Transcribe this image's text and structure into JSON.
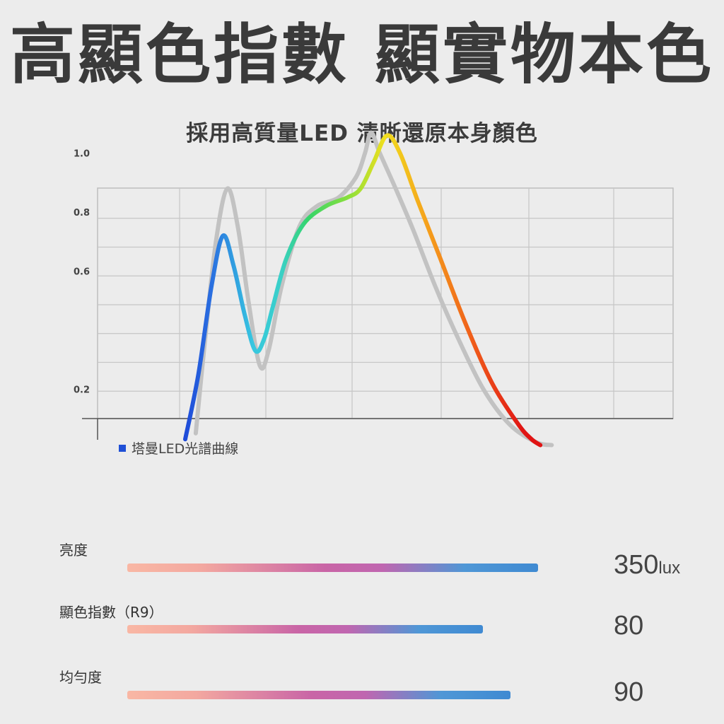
{
  "header": {
    "title": "高顯色指數 顯實物本色",
    "subtitle": "採用高質量LED 清晰還原本身顏色"
  },
  "chart_data": {
    "type": "line",
    "y_ticks": [
      "1.0",
      "0.8",
      "0.6",
      "0.2"
    ],
    "y_tick_values": [
      1.0,
      0.8,
      0.6,
      0.2
    ],
    "grid": true,
    "legend": {
      "label": "塔曼LED光譜曲線",
      "color": "#1f4fd6",
      "placement": "bottom-left"
    },
    "series": [
      {
        "name": "塔曼LED光譜曲線",
        "style": "rainbow",
        "points": [
          [
            1.0,
            0.03
          ],
          [
            1.15,
            0.25
          ],
          [
            1.3,
            0.55
          ],
          [
            1.43,
            0.72
          ],
          [
            1.55,
            0.62
          ],
          [
            1.68,
            0.45
          ],
          [
            1.8,
            0.33
          ],
          [
            1.9,
            0.37
          ],
          [
            2.0,
            0.48
          ],
          [
            2.15,
            0.64
          ],
          [
            2.35,
            0.76
          ],
          [
            2.6,
            0.82
          ],
          [
            2.85,
            0.85
          ],
          [
            3.0,
            0.88
          ],
          [
            3.15,
            0.97
          ],
          [
            3.3,
            1.06
          ],
          [
            3.45,
            1.0
          ],
          [
            3.65,
            0.84
          ],
          [
            3.9,
            0.65
          ],
          [
            4.2,
            0.42
          ],
          [
            4.5,
            0.22
          ],
          [
            4.8,
            0.08
          ],
          [
            4.95,
            0.03
          ],
          [
            5.05,
            0.01
          ]
        ]
      },
      {
        "style": "gray",
        "points": [
          [
            1.12,
            0.05
          ],
          [
            1.22,
            0.35
          ],
          [
            1.35,
            0.7
          ],
          [
            1.48,
            0.88
          ],
          [
            1.6,
            0.75
          ],
          [
            1.72,
            0.5
          ],
          [
            1.85,
            0.28
          ],
          [
            1.95,
            0.33
          ],
          [
            2.1,
            0.55
          ],
          [
            2.3,
            0.75
          ],
          [
            2.5,
            0.82
          ],
          [
            2.75,
            0.85
          ],
          [
            2.95,
            0.92
          ],
          [
            3.05,
            1.0
          ],
          [
            3.12,
            1.07
          ],
          [
            3.22,
            1.0
          ],
          [
            3.4,
            0.88
          ],
          [
            3.6,
            0.74
          ],
          [
            3.85,
            0.55
          ],
          [
            4.1,
            0.38
          ],
          [
            4.4,
            0.2
          ],
          [
            4.7,
            0.08
          ],
          [
            5.0,
            0.02
          ],
          [
            5.18,
            0.01
          ]
        ]
      }
    ]
  },
  "metrics": [
    {
      "label": "亮度",
      "value": "350",
      "unit": "lux",
      "fill": 0.9
    },
    {
      "label": "顯色指數（R9）",
      "value": "80",
      "unit": "",
      "fill": 0.78
    },
    {
      "label": "均勻度",
      "value": "90",
      "unit": "",
      "fill": 0.84
    }
  ]
}
